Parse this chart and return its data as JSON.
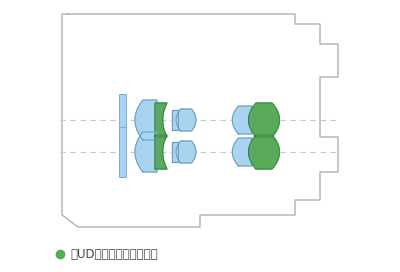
{
  "fig_width": 4.0,
  "fig_height": 2.72,
  "dpi": 100,
  "bg_color": "#ffffff",
  "body_color": "#b0b0b0",
  "lens_blue": "#a8d4f0",
  "lens_green": "#5aaa5a",
  "axis_color": "#c8c8c8",
  "caption_dot_color": "#4caf50",
  "caption_text_color": "#444444",
  "caption_text": "はUDレンズを表します。",
  "caption_fontsize": 8.5
}
